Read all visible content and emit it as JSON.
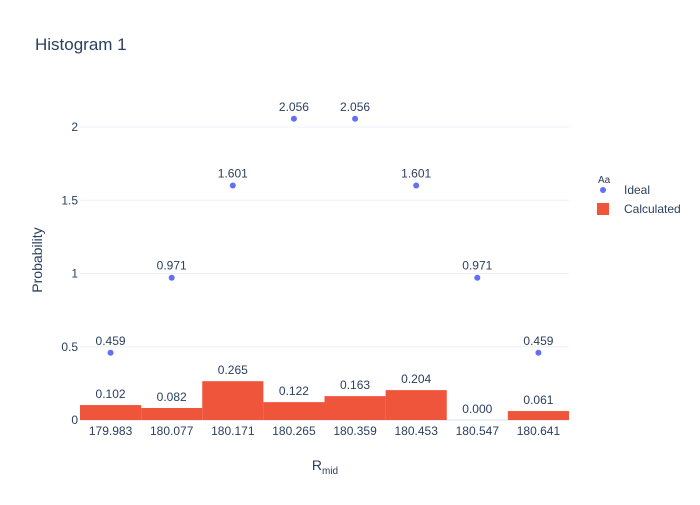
{
  "chart_data": {
    "type": "bar",
    "title": "Histogram 1",
    "xlabel_main": "R",
    "xlabel_sub": "mid",
    "ylabel": "Probability",
    "categories": [
      "179.983",
      "180.077",
      "180.171",
      "180.265",
      "180.359",
      "180.453",
      "180.547",
      "180.641"
    ],
    "ylim": [
      0,
      2.3
    ],
    "yticks": [
      0,
      0.5,
      1,
      1.5,
      2
    ],
    "ytick_labels": [
      "0",
      "0.5",
      "1",
      "1.5",
      "2"
    ],
    "grid": true,
    "legend_title": "Aa",
    "legend_position": "right",
    "series": [
      {
        "name": "Ideal",
        "kind": "scatter",
        "color": "#636efa",
        "values": [
          0.459,
          0.971,
          1.601,
          2.056,
          2.056,
          1.601,
          0.971,
          0.459
        ],
        "labels": [
          "0.459",
          "0.971",
          "1.601",
          "2.056",
          "2.056",
          "1.601",
          "0.971",
          "0.459"
        ]
      },
      {
        "name": "Calculated",
        "kind": "bar",
        "color": "#ef553b",
        "values": [
          0.102,
          0.082,
          0.265,
          0.122,
          0.163,
          0.204,
          0.0,
          0.061
        ],
        "labels": [
          "0.102",
          "0.082",
          "0.265",
          "0.122",
          "0.163",
          "0.204",
          "0.000",
          "0.061"
        ]
      }
    ]
  }
}
